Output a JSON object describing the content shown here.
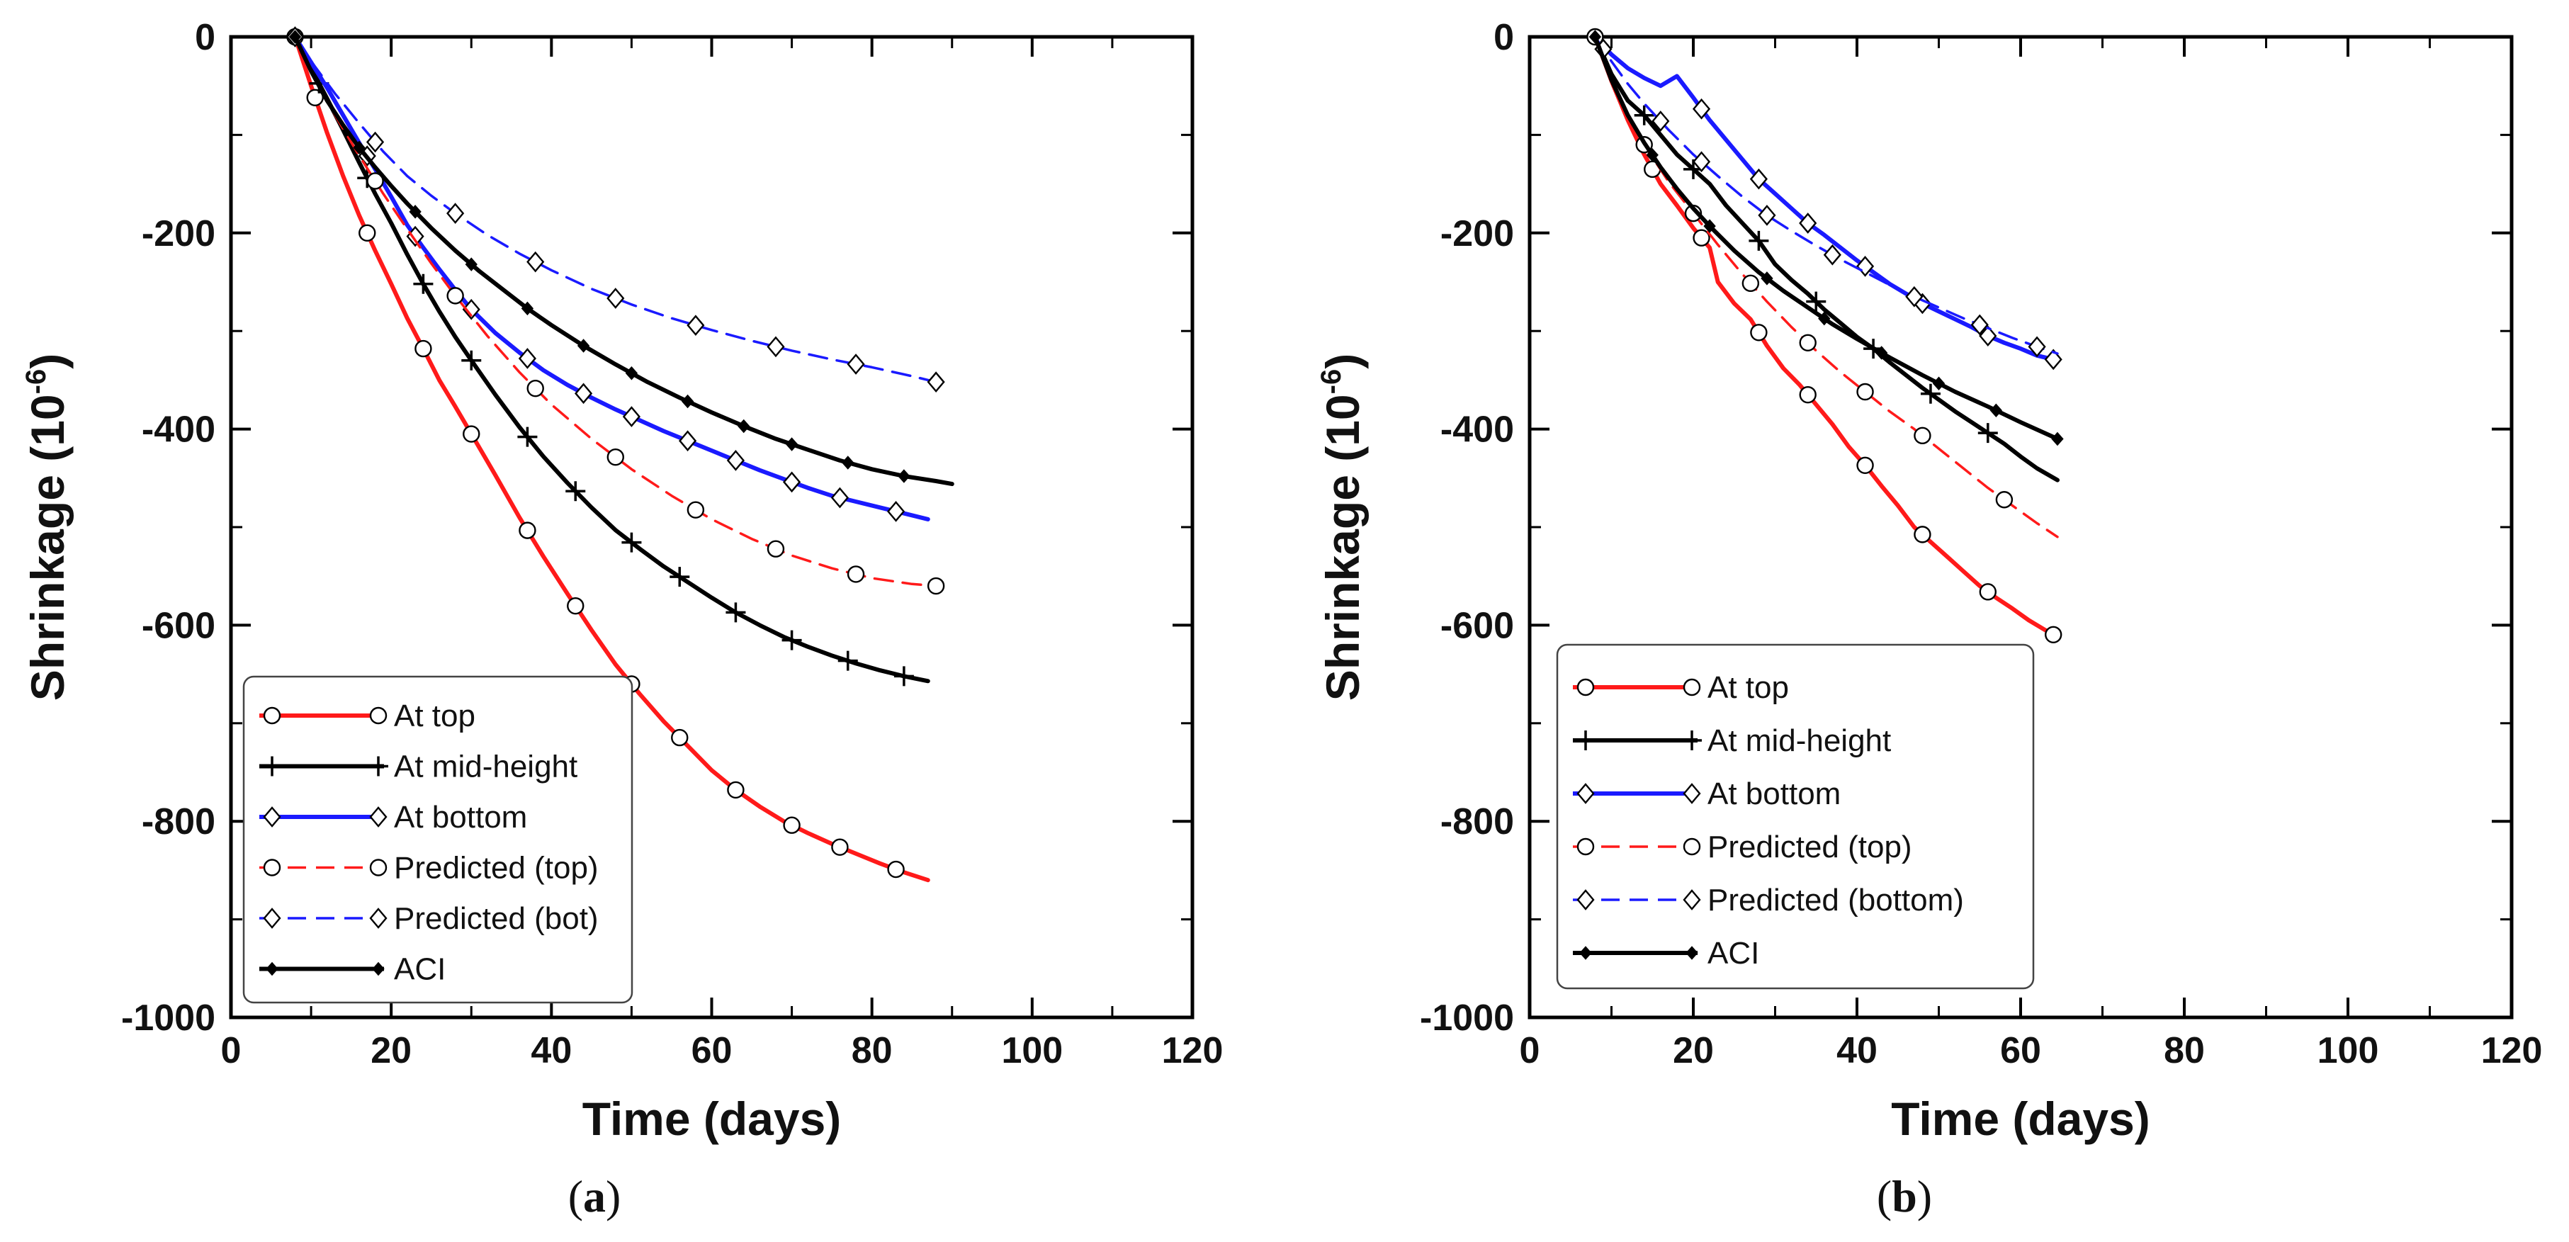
{
  "chart_data": [
    {
      "type": "line",
      "panel": "(a)",
      "panel_letter": "a",
      "xlabel": "Time (days)",
      "ylabel": "Shrinkage (10",
      "ylabel_sup": "-6",
      "ylabel_close": ")",
      "xlim": [
        0,
        120
      ],
      "ylim": [
        -1000,
        0
      ],
      "xticks": [
        0,
        20,
        40,
        60,
        80,
        100,
        120
      ],
      "yticks": [
        0,
        -200,
        -400,
        -600,
        -800,
        -1000
      ],
      "legend_position": "bottom-left",
      "series": [
        {
          "name": "At top",
          "color": "#ff1a1a",
          "dash": "solid",
          "marker": "circle",
          "marker_x": [
            10.5,
            17,
            24,
            30,
            37,
            43,
            50,
            56,
            63,
            70,
            76,
            83
          ],
          "x": [
            8,
            10,
            12,
            14,
            16,
            18,
            20,
            22,
            24,
            26,
            28,
            30,
            33,
            36,
            39,
            42,
            45,
            48,
            51,
            54,
            57,
            60,
            63,
            66,
            69,
            72,
            75,
            78,
            81,
            84,
            87
          ],
          "y": [
            0,
            -50,
            -98,
            -142,
            -182,
            -218,
            -252,
            -287,
            -318,
            -350,
            -377,
            -405,
            -447,
            -490,
            -530,
            -568,
            -605,
            -640,
            -670,
            -698,
            -723,
            -748,
            -768,
            -785,
            -800,
            -812,
            -823,
            -833,
            -843,
            -852,
            -860
          ]
        },
        {
          "name": "At mid-height",
          "color": "#000000",
          "dash": "solid",
          "marker": "plus",
          "marker_x": [
            11,
            17,
            24,
            30,
            37,
            43,
            50,
            56,
            63,
            70,
            77,
            84
          ],
          "x": [
            8,
            10,
            12,
            14,
            16,
            18,
            20,
            22,
            24,
            26,
            28,
            30,
            33,
            36,
            39,
            42,
            45,
            48,
            51,
            54,
            57,
            60,
            63,
            66,
            69,
            72,
            75,
            78,
            81,
            84,
            87
          ],
          "y": [
            0,
            -32,
            -63,
            -95,
            -128,
            -160,
            -190,
            -222,
            -252,
            -280,
            -306,
            -330,
            -365,
            -398,
            -428,
            -455,
            -480,
            -503,
            -522,
            -540,
            -556,
            -572,
            -587,
            -600,
            -612,
            -622,
            -631,
            -639,
            -646,
            -652,
            -657
          ]
        },
        {
          "name": "At bottom",
          "color": "#1a1aff",
          "dash": "solid",
          "marker": "diamond",
          "marker_x": [
            17,
            23,
            30,
            37,
            44,
            50,
            57,
            63,
            70,
            76,
            83
          ],
          "x": [
            8,
            10,
            12,
            14,
            16,
            18,
            20,
            22,
            24,
            26,
            28,
            30,
            33,
            36,
            39,
            42,
            45,
            48,
            51,
            54,
            57,
            60,
            63,
            66,
            69,
            72,
            75,
            78,
            81,
            84,
            87
          ],
          "y": [
            0,
            -26,
            -52,
            -80,
            -108,
            -135,
            -163,
            -192,
            -215,
            -237,
            -258,
            -278,
            -302,
            -322,
            -340,
            -355,
            -368,
            -380,
            -391,
            -402,
            -412,
            -422,
            -432,
            -442,
            -451,
            -460,
            -468,
            -474,
            -480,
            -486,
            -492
          ]
        },
        {
          "name": "Predicted (top)",
          "color": "#ff1a1a",
          "dash": "dashed",
          "marker": "circle-open",
          "marker_x": [
            8,
            18,
            28,
            38,
            48,
            58,
            68,
            78,
            88
          ],
          "x": [
            8,
            10,
            13,
            16,
            19,
            22,
            25,
            28,
            32,
            36,
            40,
            45,
            50,
            55,
            60,
            65,
            70,
            75,
            80,
            85,
            88
          ],
          "y": [
            0,
            -34,
            -80,
            -121,
            -160,
            -196,
            -231,
            -264,
            -305,
            -342,
            -375,
            -410,
            -441,
            -468,
            -492,
            -512,
            -529,
            -542,
            -552,
            -558,
            -560
          ]
        },
        {
          "name": "Predicted (bot)",
          "color": "#1a1aff",
          "dash": "dashed",
          "marker": "diamond-open",
          "marker_x": [
            8,
            18,
            28,
            38,
            48,
            58,
            68,
            78,
            88
          ],
          "x": [
            8,
            10,
            13,
            16,
            19,
            22,
            25,
            28,
            32,
            36,
            40,
            45,
            50,
            55,
            60,
            65,
            70,
            75,
            80,
            85,
            89
          ],
          "y": [
            0,
            -25,
            -58,
            -88,
            -117,
            -142,
            -162,
            -180,
            -202,
            -221,
            -238,
            -257,
            -273,
            -287,
            -299,
            -310,
            -320,
            -329,
            -337,
            -346,
            -354
          ]
        },
        {
          "name": "ACI",
          "color": "#000000",
          "dash": "solid",
          "marker": "diamond-filled",
          "marker_x": [
            8,
            16,
            23,
            30,
            37,
            44,
            50,
            57,
            64,
            70,
            77,
            84
          ],
          "x": [
            8,
            10,
            12,
            14,
            16,
            18,
            20,
            22,
            25,
            28,
            31,
            34,
            37,
            40,
            44,
            48,
            52,
            56,
            60,
            64,
            68,
            72,
            76,
            80,
            84,
            88,
            90
          ],
          "y": [
            0,
            -35,
            -65,
            -90,
            -113,
            -133,
            -152,
            -170,
            -195,
            -218,
            -239,
            -258,
            -277,
            -294,
            -315,
            -334,
            -352,
            -368,
            -383,
            -397,
            -410,
            -421,
            -432,
            -441,
            -448,
            -453,
            -456
          ]
        }
      ]
    },
    {
      "type": "line",
      "panel": "(b)",
      "panel_letter": "b",
      "xlabel": "Time (days)",
      "ylabel": "Shrinkage (10",
      "ylabel_sup": "-6",
      "ylabel_close": ")",
      "xlim": [
        0,
        120
      ],
      "ylim": [
        -1000,
        0
      ],
      "xticks": [
        0,
        20,
        40,
        60,
        80,
        100,
        120
      ],
      "yticks": [
        0,
        -200,
        -400,
        -600,
        -800,
        -1000
      ],
      "legend_position": "bottom-left",
      "series": [
        {
          "name": "At top",
          "color": "#ff1a1a",
          "dash": "solid",
          "marker": "circle",
          "marker_x": [
            15,
            21,
            28,
            34,
            41,
            48,
            56,
            64
          ],
          "x": [
            8,
            10,
            12,
            14,
            16,
            18,
            20,
            22,
            23,
            25,
            27,
            29,
            31,
            33,
            35,
            37,
            39,
            41,
            43,
            45,
            47,
            49,
            51,
            53,
            55,
            57,
            59,
            61,
            63,
            64.5
          ],
          "y": [
            0,
            -45,
            -85,
            -120,
            -150,
            -172,
            -195,
            -215,
            -250,
            -272,
            -288,
            -315,
            -338,
            -355,
            -375,
            -395,
            -418,
            -437,
            -458,
            -478,
            -500,
            -515,
            -530,
            -545,
            -560,
            -572,
            -583,
            -595,
            -605,
            -612
          ]
        },
        {
          "name": "At mid-height",
          "color": "#000000",
          "dash": "solid",
          "marker": "plus",
          "marker_x": [
            14,
            20,
            28,
            35,
            42,
            49,
            56
          ],
          "x": [
            8,
            10,
            12,
            14,
            16,
            18,
            20,
            22,
            24,
            26,
            28,
            30,
            32,
            34,
            36,
            38,
            40,
            42,
            44,
            46,
            48,
            50,
            52,
            54,
            56,
            58,
            60,
            62,
            64.5
          ],
          "y": [
            0,
            -38,
            -65,
            -80,
            -100,
            -120,
            -135,
            -150,
            -172,
            -190,
            -208,
            -232,
            -248,
            -262,
            -278,
            -292,
            -306,
            -318,
            -332,
            -345,
            -358,
            -370,
            -382,
            -393,
            -404,
            -415,
            -428,
            -440,
            -452
          ]
        },
        {
          "name": "At bottom",
          "color": "#1a1aff",
          "dash": "solid",
          "marker": "diamond",
          "marker_x": [
            21,
            28,
            34,
            41,
            48,
            56,
            64
          ],
          "x": [
            8,
            10,
            12,
            14,
            16,
            18,
            20,
            22,
            24,
            26,
            28,
            30,
            32,
            34,
            36,
            38,
            40,
            42,
            44,
            46,
            48,
            50,
            52,
            54,
            56,
            58,
            60,
            62,
            64.5
          ],
          "y": [
            0,
            -18,
            -32,
            -42,
            -50,
            -40,
            -62,
            -85,
            -105,
            -125,
            -145,
            -160,
            -175,
            -190,
            -202,
            -215,
            -228,
            -240,
            -252,
            -262,
            -272,
            -280,
            -288,
            -296,
            -305,
            -312,
            -318,
            -325,
            -330
          ]
        },
        {
          "name": "Predicted (top)",
          "color": "#ff1a1a",
          "dash": "dashed",
          "marker": "circle-open",
          "marker_x": [
            8,
            14,
            20,
            27,
            34,
            41,
            48,
            58
          ],
          "x": [
            8,
            10,
            12,
            14,
            17,
            20,
            23,
            26,
            29,
            32,
            35,
            38,
            41,
            44,
            47,
            50,
            53,
            56,
            59,
            62,
            64.5
          ],
          "y": [
            0,
            -42,
            -80,
            -110,
            -148,
            -180,
            -212,
            -242,
            -270,
            -296,
            -320,
            -342,
            -362,
            -382,
            -400,
            -420,
            -440,
            -460,
            -478,
            -496,
            -510
          ]
        },
        {
          "name": "Predicted (bottom)",
          "color": "#1a1aff",
          "dash": "dashed",
          "marker": "diamond-open",
          "marker_x": [
            9,
            16,
            21,
            29,
            37,
            47,
            55,
            62
          ],
          "x": [
            8,
            10,
            12,
            14,
            17,
            20,
            23,
            26,
            29,
            32,
            35,
            38,
            41,
            44,
            47,
            50,
            53,
            56,
            59,
            62,
            64.5
          ],
          "y": [
            0,
            -25,
            -48,
            -68,
            -95,
            -120,
            -142,
            -163,
            -182,
            -198,
            -213,
            -227,
            -240,
            -253,
            -265,
            -276,
            -287,
            -297,
            -307,
            -316,
            -323
          ]
        },
        {
          "name": "ACI",
          "color": "#000000",
          "dash": "solid",
          "marker": "diamond-filled",
          "marker_x": [
            8,
            15,
            22,
            29,
            36,
            43,
            50,
            57,
            64.5
          ],
          "x": [
            8,
            10,
            12,
            14,
            16,
            18,
            20,
            22,
            25,
            28,
            31,
            34,
            37,
            40,
            44,
            48,
            52,
            56,
            60,
            64.5
          ],
          "y": [
            0,
            -44,
            -80,
            -108,
            -133,
            -155,
            -175,
            -193,
            -218,
            -240,
            -259,
            -276,
            -293,
            -308,
            -327,
            -345,
            -362,
            -377,
            -393,
            -410
          ]
        }
      ]
    }
  ]
}
